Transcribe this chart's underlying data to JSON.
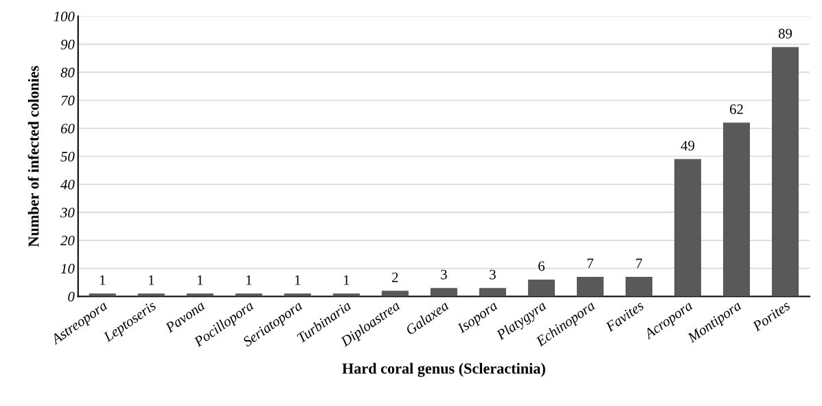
{
  "chart_data": {
    "type": "bar",
    "xlabel": "Hard coral genus (Scleractinia)",
    "ylabel": "Number of infected colonies",
    "categories": [
      "Astreopora",
      "Leptoseris",
      "Pavona",
      "Pocillopora",
      "Seriatopora",
      "Turbinaria",
      "Diploastrea",
      "Galaxea",
      "Isopora",
      "Platygyra",
      "Echinopora",
      "Favites",
      "Acropora",
      "Montipora",
      "Porites"
    ],
    "values": [
      1,
      1,
      1,
      1,
      1,
      1,
      2,
      3,
      3,
      6,
      7,
      7,
      49,
      62,
      89
    ],
    "color": "#595959",
    "ylim": [
      0,
      100
    ],
    "yticks": [
      0,
      10,
      20,
      30,
      40,
      50,
      60,
      70,
      80,
      90,
      100
    ],
    "grid": "y",
    "data_labels": true
  }
}
